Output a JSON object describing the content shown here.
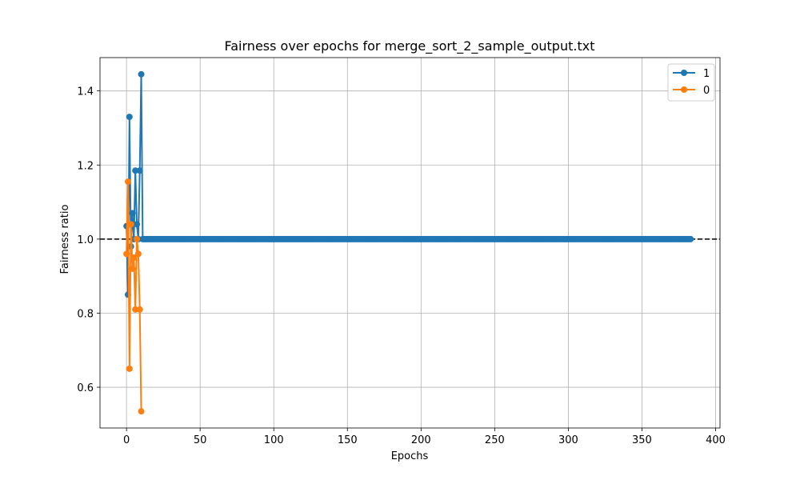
{
  "chart_data": {
    "type": "line",
    "title": "Fairness over epochs for merge_sort_2_sample_output.txt",
    "xlabel": "Epochs",
    "ylabel": "Fairness ratio",
    "xlim": [
      -18,
      403
    ],
    "ylim": [
      0.49,
      1.49
    ],
    "xticks": [
      0,
      50,
      100,
      150,
      200,
      250,
      300,
      350,
      400
    ],
    "yticks": [
      0.6,
      0.8,
      1.0,
      1.2,
      1.4
    ],
    "ytick_labels": [
      "0.6",
      "0.8",
      "1.0",
      "1.2",
      "1.4"
    ],
    "grid": true,
    "reference_line": {
      "y": 1.0,
      "style": "dashed",
      "color": "#000000"
    },
    "legend_position": "top-right",
    "series": [
      {
        "name": "1",
        "color": "#1f77b4",
        "x_start": 0,
        "x_end": 383,
        "head": [
          1.035,
          0.85,
          1.33,
          0.98,
          1.07,
          1.0,
          1.185,
          1.04,
          1.0,
          1.185,
          1.445
        ],
        "tail_value": 1.0
      },
      {
        "name": "0",
        "color": "#ff7f0e",
        "x": [
          0,
          1,
          2,
          3,
          4,
          5,
          6,
          7,
          8,
          9,
          10
        ],
        "values": [
          0.96,
          1.155,
          0.65,
          1.04,
          0.92,
          0.95,
          0.81,
          1.0,
          0.96,
          0.81,
          0.535
        ]
      }
    ]
  }
}
